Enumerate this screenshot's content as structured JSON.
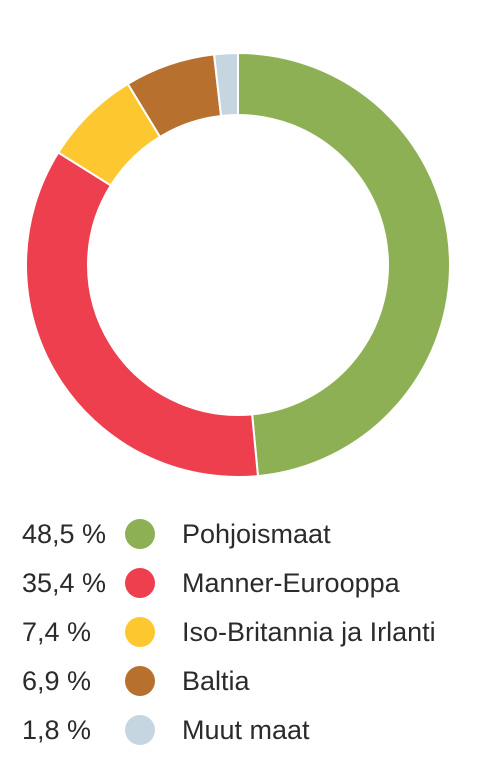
{
  "chart_data": {
    "type": "pie",
    "style": "donut",
    "legend_placement": "bottom",
    "categories": [
      "Pohjoismaat",
      "Manner-Eurooppa",
      "Iso-Britannia ja Irlanti",
      "Baltia",
      "Muut maat"
    ],
    "values": [
      48.5,
      35.4,
      7.4,
      6.9,
      1.8
    ],
    "value_labels": [
      "48,5 %",
      "35,4 %",
      "7,4 %",
      "6,9 %",
      "1,8 %"
    ],
    "colors": [
      "#8db055",
      "#ee3f4f",
      "#fdc82f",
      "#b8702f",
      "#c5d6e0"
    ]
  }
}
